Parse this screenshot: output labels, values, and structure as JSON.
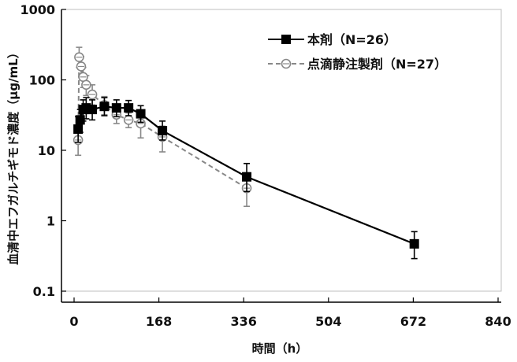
{
  "chart_data": {
    "type": "line",
    "xlabel": "時間（h）",
    "ylabel": "血清中エフガルチギモド濃度（μg/mL）",
    "xlim": [
      0,
      840
    ],
    "ylim": [
      0.1,
      1000
    ],
    "y_scale": "log",
    "x_ticks": [
      "0",
      "168",
      "336",
      "504",
      "672",
      "840"
    ],
    "y_ticks": [
      "0.1",
      "1",
      "10",
      "100",
      "1000"
    ],
    "grid": false,
    "legend_position": "top-right",
    "series": [
      {
        "name": "本剤（N=26）",
        "color": "#000000",
        "marker": "filled-square",
        "line_style": "solid",
        "points": [
          {
            "x": 8,
            "y": 20,
            "lo": 13,
            "hi": 30
          },
          {
            "x": 12,
            "y": 27,
            "lo": 18,
            "hi": 38
          },
          {
            "x": 18,
            "y": 38,
            "lo": 26,
            "hi": 52
          },
          {
            "x": 24,
            "y": 40,
            "lo": 28,
            "hi": 56
          },
          {
            "x": 36,
            "y": 38,
            "lo": 27,
            "hi": 52
          },
          {
            "x": 60,
            "y": 42,
            "lo": 31,
            "hi": 56
          },
          {
            "x": 84,
            "y": 40,
            "lo": 30,
            "hi": 52
          },
          {
            "x": 108,
            "y": 40,
            "lo": 31,
            "hi": 51
          },
          {
            "x": 132,
            "y": 33,
            "lo": 25,
            "hi": 43
          },
          {
            "x": 175,
            "y": 19,
            "lo": 14,
            "hi": 26
          },
          {
            "x": 342,
            "y": 4.2,
            "lo": 2.6,
            "hi": 6.5
          },
          {
            "x": 674,
            "y": 0.47,
            "lo": 0.29,
            "hi": 0.7
          }
        ]
      },
      {
        "name": "点滴静注製剤（N=27）",
        "color": "#888888",
        "marker": "open-circle",
        "line_style": "dashed",
        "points": [
          {
            "x": 8,
            "y": 14,
            "lo": 8.5,
            "hi": 20
          },
          {
            "x": 10,
            "y": 210,
            "lo": 150,
            "hi": 290
          },
          {
            "x": 14,
            "y": 155,
            "lo": 110,
            "hi": 215
          },
          {
            "x": 18,
            "y": 110,
            "lo": 78,
            "hi": 150
          },
          {
            "x": 24,
            "y": 85,
            "lo": 60,
            "hi": 115
          },
          {
            "x": 36,
            "y": 62,
            "lo": 44,
            "hi": 85
          },
          {
            "x": 60,
            "y": 44,
            "lo": 32,
            "hi": 58
          },
          {
            "x": 84,
            "y": 32,
            "lo": 24,
            "hi": 42
          },
          {
            "x": 108,
            "y": 27,
            "lo": 21,
            "hi": 34
          },
          {
            "x": 132,
            "y": 24,
            "lo": 15,
            "hi": 33
          },
          {
            "x": 175,
            "y": 15.5,
            "lo": 9.5,
            "hi": 22
          },
          {
            "x": 342,
            "y": 2.9,
            "lo": 1.6,
            "hi": 4.8
          }
        ]
      }
    ]
  }
}
